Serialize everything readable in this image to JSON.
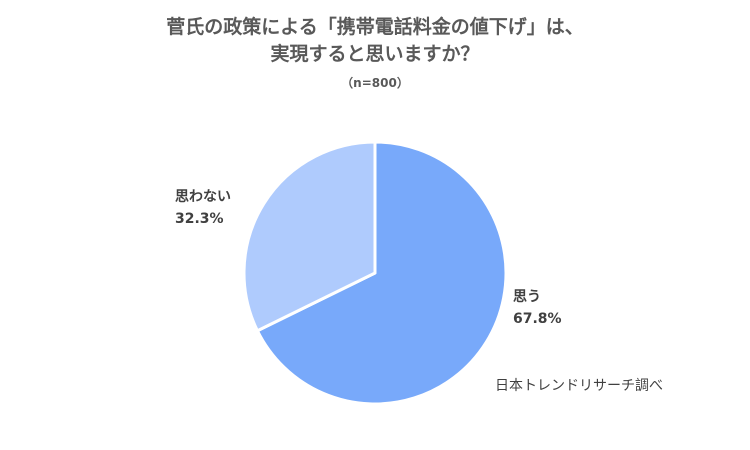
{
  "chart_data": {
    "type": "pie",
    "title_lines": [
      "菅氏の政策による「携帯電話料金の値下げ」は、",
      "実現すると思いますか？"
    ],
    "subtitle": "（n=800）",
    "slices": [
      {
        "name": "思う",
        "value": 67.8,
        "label": "67.8%",
        "color": "#78a9fa"
      },
      {
        "name": "思わない",
        "value": 32.3,
        "label": "32.3%",
        "color": "#afcbfd"
      }
    ],
    "start": "12 o'clock",
    "direction": "clockwise",
    "source": "日本トレンドリサーチ調べ"
  }
}
